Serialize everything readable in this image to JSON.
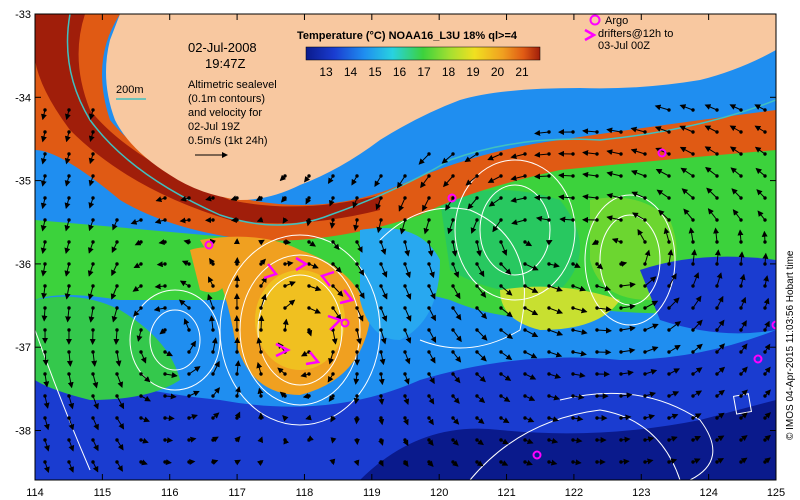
{
  "colorbar": {
    "title": "Temperature (°C) NOAA16_L3U 18% ql>=4",
    "ticks": [
      "13",
      "14",
      "15",
      "16",
      "17",
      "18",
      "19",
      "20",
      "21"
    ],
    "colors": [
      "#0a1a8c",
      "#1a3cd0",
      "#1f8ef0",
      "#28d2e0",
      "#3cd23c",
      "#a8e030",
      "#f0e020",
      "#f0a020",
      "#e05a14",
      "#a01e0a"
    ]
  },
  "info": {
    "date": "02-Jul-2008",
    "time": "19:47Z",
    "contour_label": "200m",
    "legend_line1": "Altimetric sealevel",
    "legend_line2": "(0.1m contours)",
    "legend_line3": "and velocity for",
    "legend_line4": "02-Jul 19Z",
    "legend_line5": "0.5m/s (1kt 24h)"
  },
  "argo": {
    "label": "Argo",
    "drifters_line1": "drifters@12h to",
    "drifters_line2": "03-Jul 00Z"
  },
  "credit": "© IMOS 04-Apr-2015 11:03:56 Hobart time",
  "axes": {
    "x_ticks": [
      "114",
      "115",
      "116",
      "117",
      "118",
      "119",
      "120",
      "121",
      "122",
      "123",
      "124",
      "125"
    ],
    "y_ticks": [
      "-33",
      "-34",
      "-35",
      "-36",
      "-37",
      "-38"
    ]
  },
  "colors": {
    "land": "#f8c8a0",
    "coast_contour": "#40c0c0",
    "argo": "#ff00ff",
    "contour": "#ffffff"
  }
}
